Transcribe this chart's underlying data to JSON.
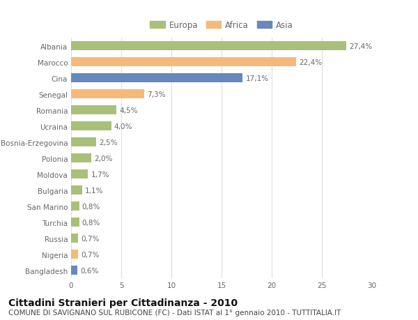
{
  "categories": [
    "Albania",
    "Marocco",
    "Cina",
    "Senegal",
    "Romania",
    "Ucraina",
    "Bosnia-Erzegovina",
    "Polonia",
    "Moldova",
    "Bulgaria",
    "San Marino",
    "Turchia",
    "Russia",
    "Nigeria",
    "Bangladesh"
  ],
  "values": [
    27.4,
    22.4,
    17.1,
    7.3,
    4.5,
    4.0,
    2.5,
    2.0,
    1.7,
    1.1,
    0.8,
    0.8,
    0.7,
    0.7,
    0.6
  ],
  "labels": [
    "27,4%",
    "22,4%",
    "17,1%",
    "7,3%",
    "4,5%",
    "4,0%",
    "2,5%",
    "2,0%",
    "1,7%",
    "1,1%",
    "0,8%",
    "0,8%",
    "0,7%",
    "0,7%",
    "0,6%"
  ],
  "colors": [
    "#a8c07a",
    "#f5b97a",
    "#6688bb",
    "#f5b97a",
    "#a8c07a",
    "#a8c07a",
    "#a8c07a",
    "#a8c07a",
    "#a8c07a",
    "#a8c07a",
    "#a8c07a",
    "#a8c07a",
    "#a8c07a",
    "#f5b97a",
    "#6688bb"
  ],
  "legend_labels": [
    "Europa",
    "Africa",
    "Asia"
  ],
  "legend_colors": [
    "#a8c07a",
    "#f5b97a",
    "#6688bb"
  ],
  "title": "Cittadini Stranieri per Cittadinanza - 2010",
  "subtitle": "COMUNE DI SAVIGNANO SUL RUBICONE (FC) - Dati ISTAT al 1° gennaio 2010 - TUTTITALIA.IT",
  "xlim": [
    0,
    30
  ],
  "xticks": [
    0,
    5,
    10,
    15,
    20,
    25,
    30
  ],
  "background_color": "#ffffff",
  "grid_color": "#dddddd",
  "bar_height": 0.55,
  "label_fontsize": 7.5,
  "tick_fontsize": 7.5,
  "title_fontsize": 10,
  "subtitle_fontsize": 7.5
}
